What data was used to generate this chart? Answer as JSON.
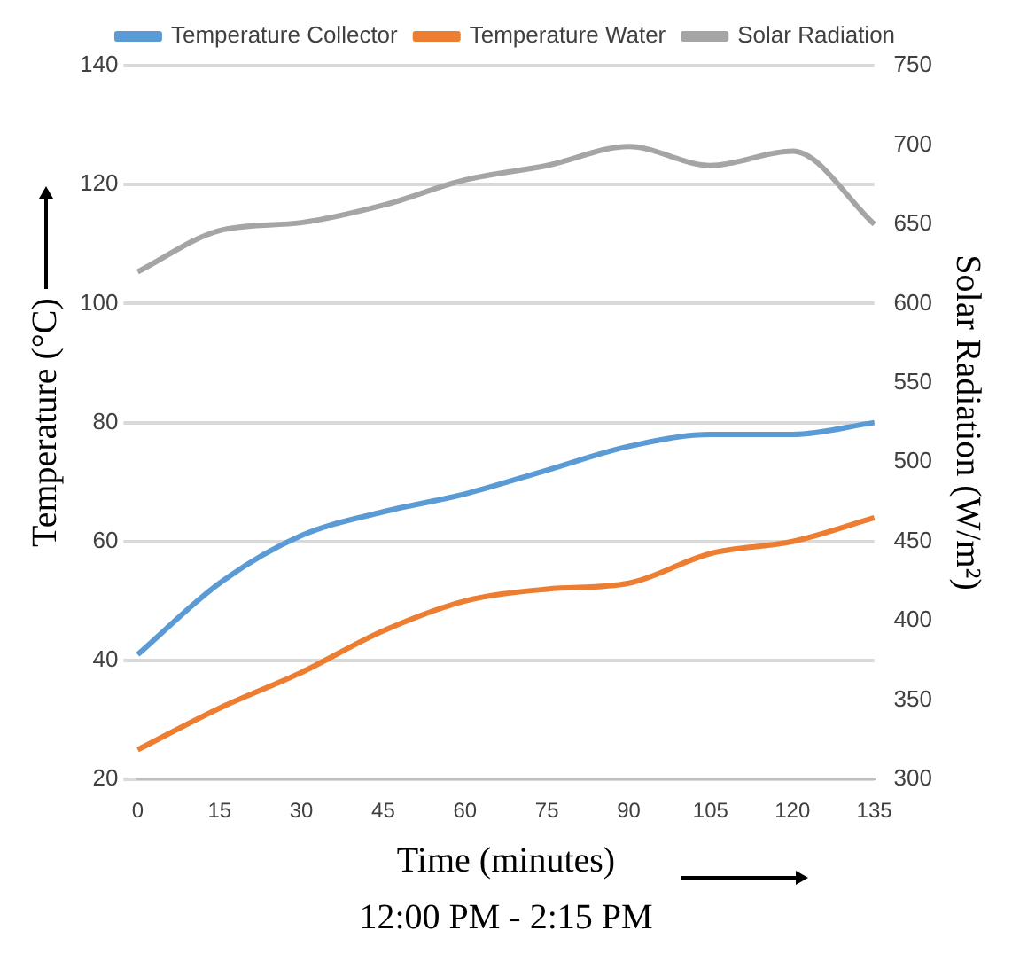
{
  "chart_data": {
    "type": "line",
    "xlabel": "Time (minutes)",
    "ylabel": "Temperature (°C)",
    "y2label": "Solar Radiation (W/m²)",
    "annotations": [
      "12:00 PM - 2:15 PM"
    ],
    "categories": [
      "0",
      "15",
      "30",
      "45",
      "60",
      "75",
      "90",
      "105",
      "120",
      "135"
    ],
    "series": [
      {
        "name": "Temperature Collector",
        "color": "#5b9bd5",
        "values": [
          41,
          53,
          61,
          65,
          68,
          72,
          76,
          78,
          78,
          80
        ]
      },
      {
        "name": "Temperature Water",
        "color": "#ed7d31",
        "values": [
          25,
          32,
          38,
          45,
          50,
          52,
          53,
          58,
          60,
          64
        ]
      },
      {
        "name": "Solar Radiation",
        "color": "#a5a5a5",
        "axis": "y2",
        "values": [
          620,
          646,
          651,
          662,
          678,
          687,
          699,
          687,
          696,
          650
        ]
      }
    ],
    "ylim": [
      20,
      140
    ],
    "yticks": [
      20,
      40,
      60,
      80,
      100,
      120,
      140
    ],
    "y2lim": [
      300,
      750
    ],
    "y2ticks": [
      300,
      350,
      400,
      450,
      500,
      550,
      600,
      650,
      700,
      750
    ],
    "grid": "y",
    "legend": "top",
    "marker": "none",
    "line_style": "solid"
  }
}
